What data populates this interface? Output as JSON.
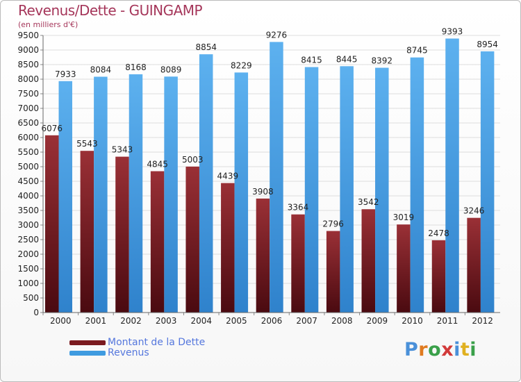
{
  "title": "Revenus/Dette - GUINGAMP",
  "subtitle": "(en milliers d'€)",
  "brand": {
    "letters": [
      "P",
      "r",
      "o",
      "x",
      "i",
      "t",
      "i"
    ],
    "colors": [
      "#4a90d9",
      "#e07b20",
      "#3aa04a",
      "#d23a3a",
      "#4a90d9",
      "#e0b020",
      "#3aa04a"
    ]
  },
  "chart_data": {
    "type": "bar",
    "categories": [
      "2000",
      "2001",
      "2002",
      "2003",
      "2004",
      "2005",
      "2006",
      "2007",
      "2008",
      "2009",
      "2010",
      "2011",
      "2012"
    ],
    "series": [
      {
        "name": "Montant de la Dette",
        "color": "#7a1a1f",
        "values": [
          6076,
          5543,
          5343,
          4845,
          5003,
          4439,
          3908,
          3364,
          2796,
          3542,
          3019,
          2478,
          3246
        ]
      },
      {
        "name": "Revenus",
        "color": "#3f9be0",
        "values": [
          7933,
          8084,
          8168,
          8089,
          8854,
          8229,
          9276,
          8415,
          8445,
          8392,
          8745,
          9393,
          8954
        ]
      }
    ],
    "ylim": [
      0,
      9500
    ],
    "ytick_step": 500,
    "grid": true,
    "legend_position": "bottom-left"
  }
}
